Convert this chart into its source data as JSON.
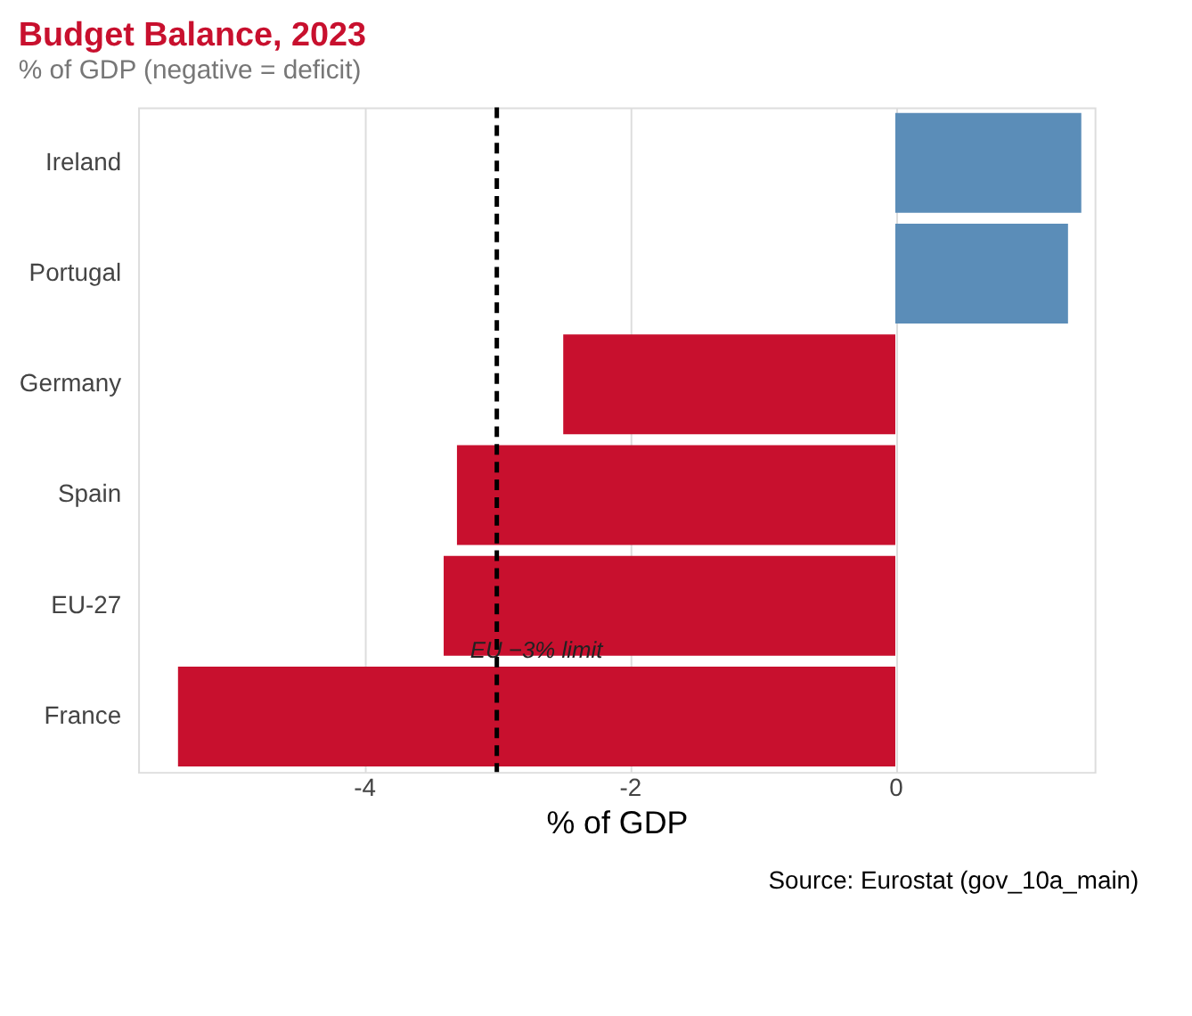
{
  "chart_data": {
    "type": "bar",
    "orientation": "horizontal",
    "title": "Budget Balance, 2023",
    "subtitle": "% of GDP (negative = deficit)",
    "xlabel": "% of GDP",
    "categories": [
      "Ireland",
      "Portugal",
      "Germany",
      "Spain",
      "EU-27",
      "France"
    ],
    "values": [
      1.4,
      1.3,
      -2.5,
      -3.3,
      -3.4,
      -5.4
    ],
    "colors": [
      "#5b8db8",
      "#5b8db8",
      "#c8102e",
      "#c8102e",
      "#c8102e",
      "#c8102e"
    ],
    "xlim": [
      -5.7,
      1.5
    ],
    "xticks": [
      {
        "value": -4,
        "label": "-4"
      },
      {
        "value": -2,
        "label": "-2"
      },
      {
        "value": 0,
        "label": "0"
      }
    ],
    "grid": "x",
    "ref_lines": [
      {
        "axis": "x",
        "value": -3,
        "label": "EU −3% limit",
        "line_style": "dashed",
        "color": "#000000"
      }
    ],
    "annotations": [
      "Source: Eurostat (gov_10a_main)"
    ]
  }
}
